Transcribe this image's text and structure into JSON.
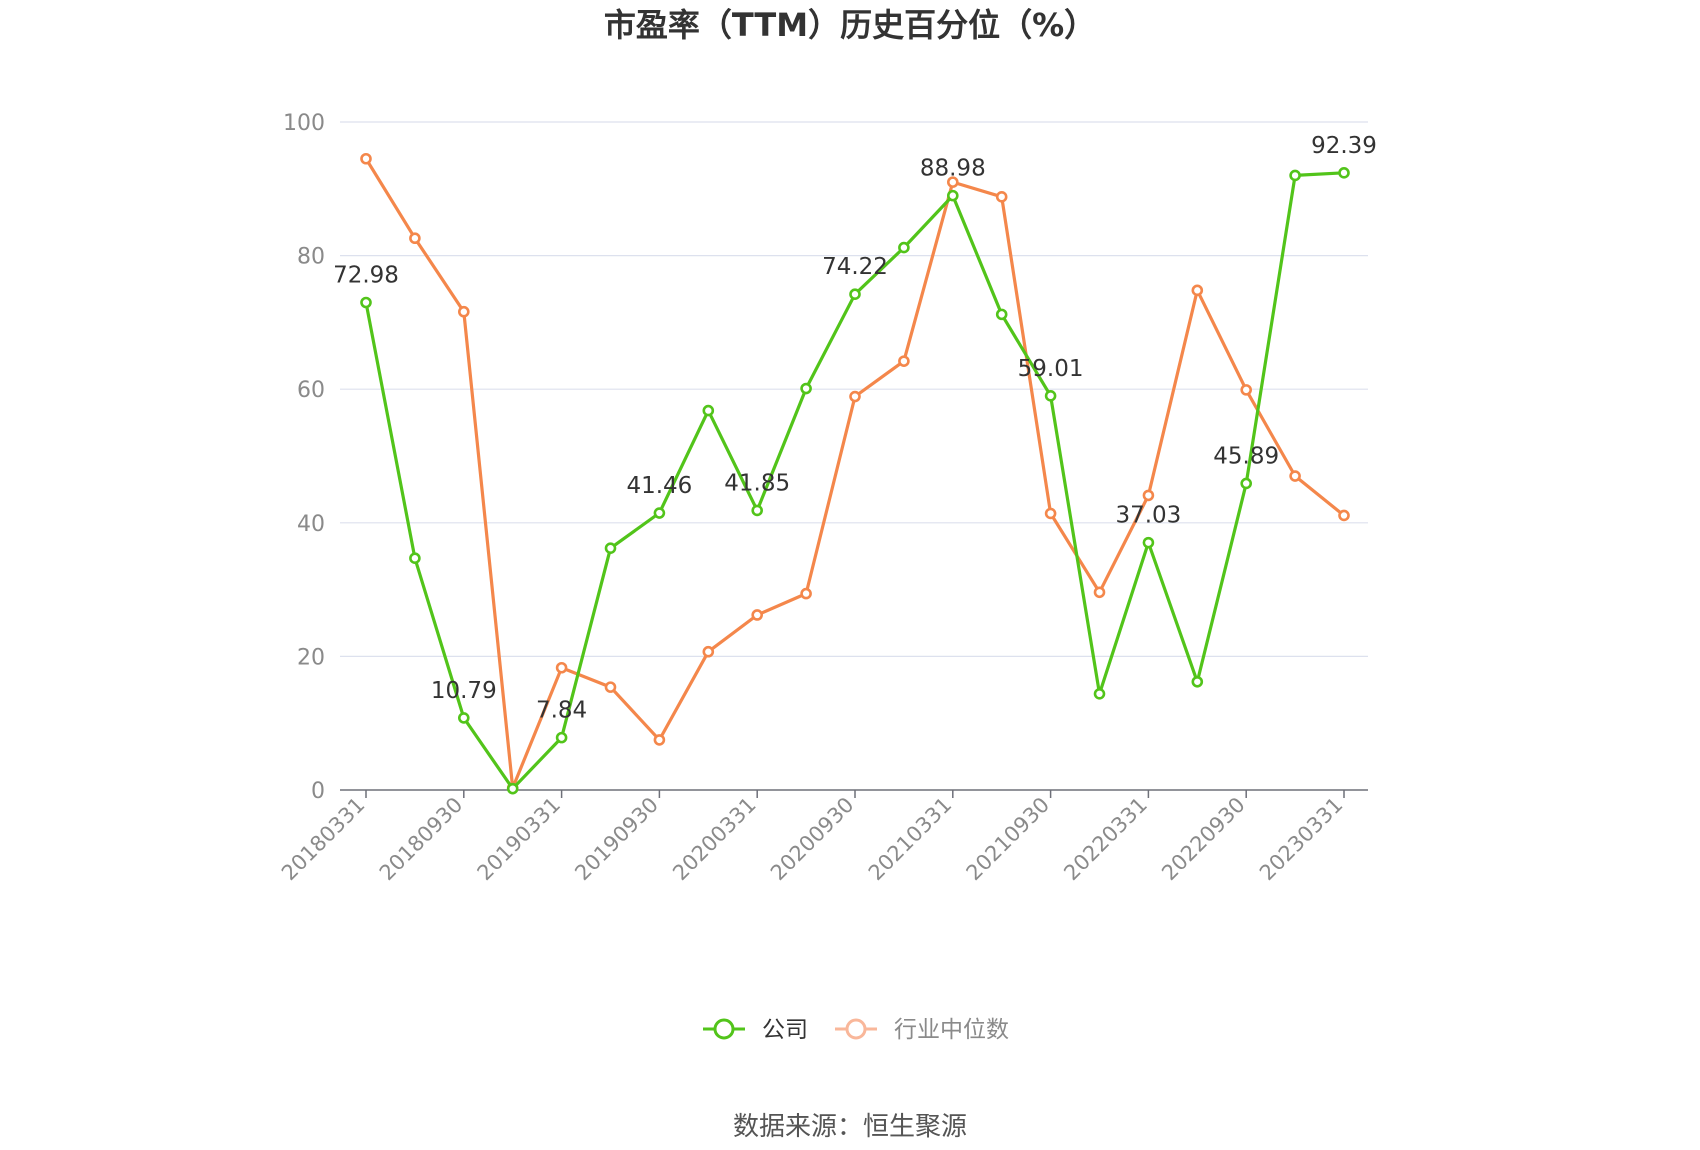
{
  "chart_data": {
    "type": "line",
    "title": "市盈率（TTM）历史百分位（%）",
    "source": "数据来源：恒生聚源",
    "ylim": [
      0,
      100
    ],
    "yticks": [
      "0",
      "20",
      "40",
      "60",
      "80",
      "100"
    ],
    "x": [
      "20180331",
      "20180630",
      "20180930",
      "20181231",
      "20190331",
      "20190630",
      "20190930",
      "20191231",
      "20200331",
      "20200630",
      "20200930",
      "20201231",
      "20210331",
      "20210630",
      "20210930",
      "20211231",
      "20220331",
      "20220630",
      "20220930",
      "20221231",
      "20230331"
    ],
    "xtick_labels": [
      "20180331",
      "20180930",
      "20190331",
      "20190930",
      "20200331",
      "20200930",
      "20210331",
      "20210930",
      "20220331",
      "20220930",
      "20230331"
    ],
    "grid": true,
    "legend_position": "bottom",
    "series": [
      {
        "name": "公司",
        "color": "#52c41a",
        "values": [
          72.98,
          34.7,
          10.79,
          0.2,
          7.84,
          36.2,
          41.46,
          56.8,
          41.85,
          60.1,
          74.22,
          81.2,
          88.98,
          71.2,
          59.01,
          14.4,
          37.03,
          16.2,
          45.89,
          92.0,
          92.39
        ],
        "data_labels": [
          {
            "index": 0,
            "text": "72.98"
          },
          {
            "index": 2,
            "text": "10.79"
          },
          {
            "index": 4,
            "text": "7.84"
          },
          {
            "index": 6,
            "text": "41.46"
          },
          {
            "index": 8,
            "text": "41.85"
          },
          {
            "index": 10,
            "text": "74.22"
          },
          {
            "index": 12,
            "text": "88.98"
          },
          {
            "index": 14,
            "text": "59.01"
          },
          {
            "index": 16,
            "text": "37.03"
          },
          {
            "index": 18,
            "text": "45.89"
          },
          {
            "index": 20,
            "text": "92.39"
          }
        ]
      },
      {
        "name": "行业中位数",
        "color": "#f4874b",
        "legend_color": "#f9b79a",
        "values": [
          94.5,
          82.6,
          71.6,
          0.3,
          18.3,
          15.4,
          7.5,
          20.7,
          26.2,
          29.4,
          58.9,
          64.2,
          91.0,
          88.8,
          41.4,
          29.6,
          44.1,
          74.8,
          59.9,
          47.0,
          41.1
        ],
        "data_labels": []
      }
    ],
    "colors": {
      "grid": "#dde1ee",
      "axis": "#6e7079",
      "text_dark": "#333333",
      "text_muted": "#8a8a8a"
    }
  }
}
